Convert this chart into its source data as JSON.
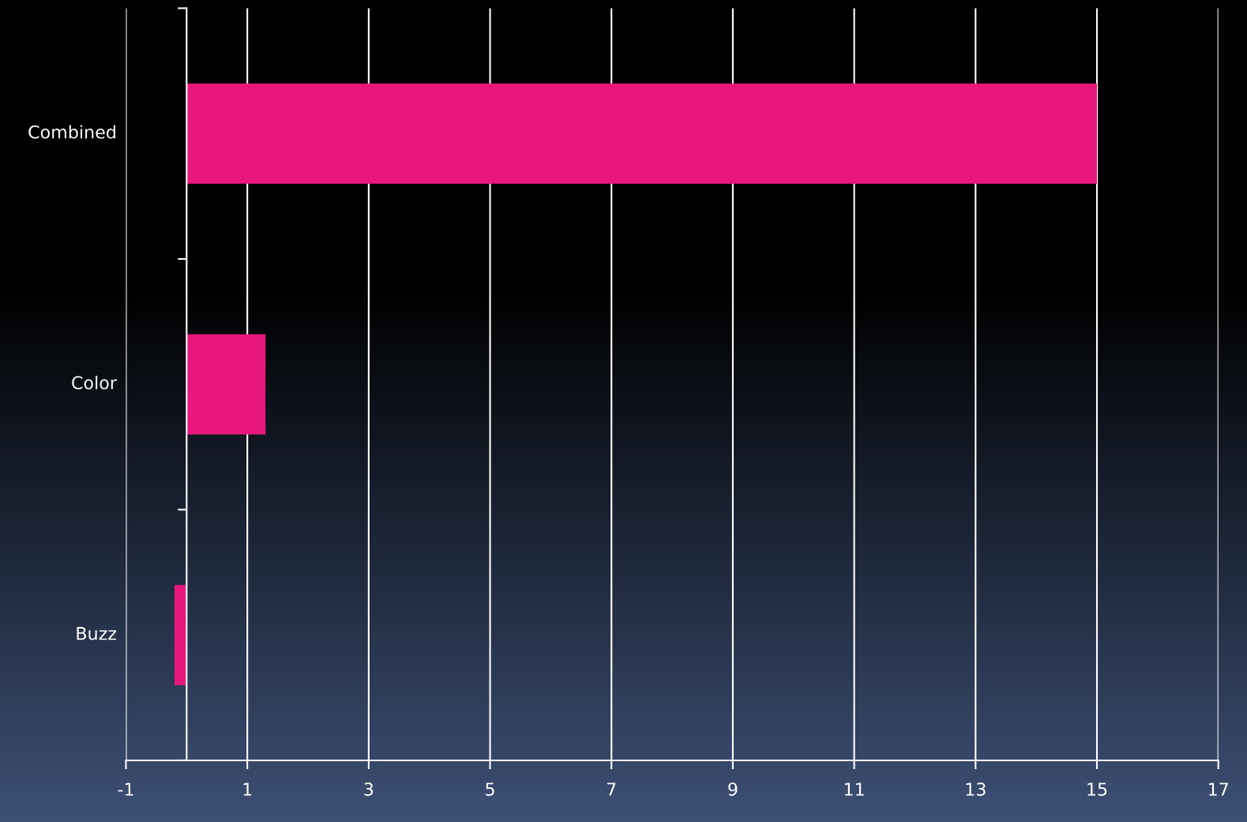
{
  "chart_data": {
    "type": "bar",
    "orientation": "horizontal",
    "categories": [
      "Combined",
      "Color",
      "Buzz"
    ],
    "values": [
      15,
      1.3,
      -0.2
    ],
    "color": "#e8177c",
    "xlim": [
      -1,
      17
    ],
    "xticks": [
      -1,
      1,
      3,
      5,
      7,
      9,
      11,
      13,
      15,
      17
    ],
    "grid": "x",
    "legend": false
  }
}
